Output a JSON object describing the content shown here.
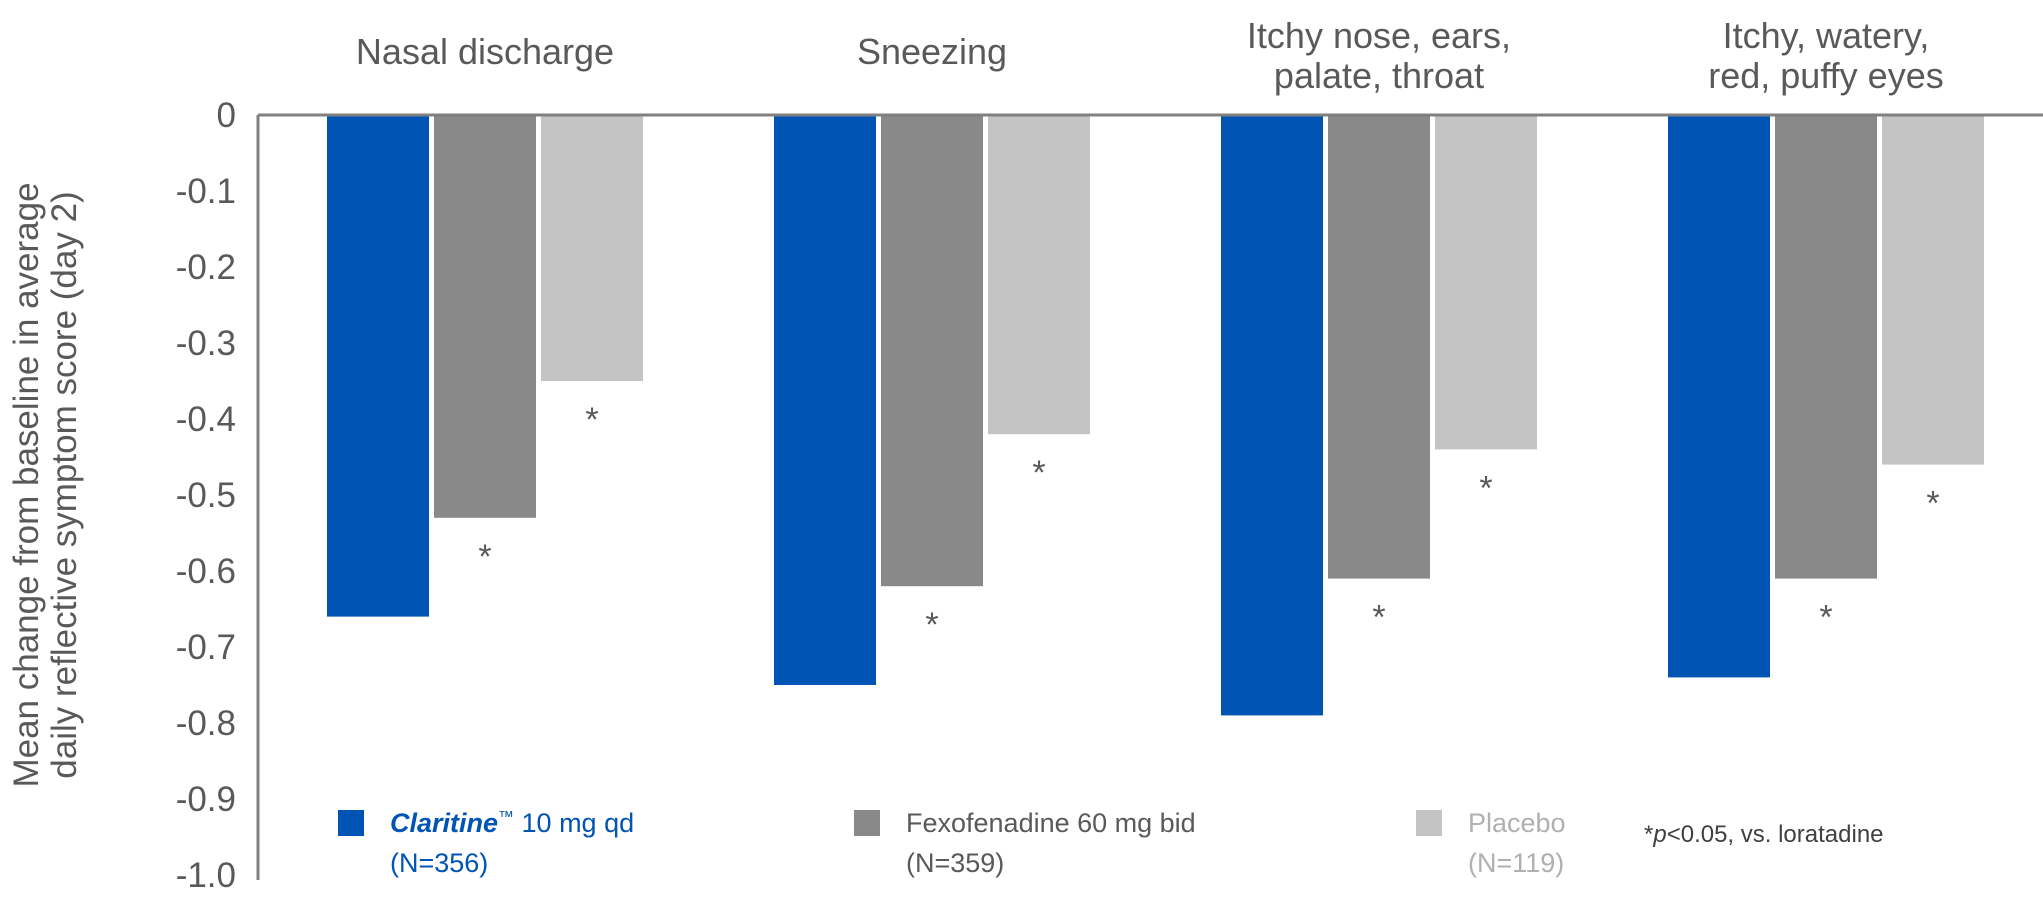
{
  "chart_data": {
    "type": "bar",
    "ylabel_lines": [
      "Mean change from baseline in average",
      "daily reflective symptom score (day 2)"
    ],
    "ylim": [
      -1.0,
      0
    ],
    "yticks": [
      "0",
      "-0.1",
      "-0.2",
      "-0.3",
      "-0.4",
      "-0.5",
      "-0.6",
      "-0.7",
      "-0.8",
      "-0.9",
      "-1.0"
    ],
    "grid": false,
    "categories": [
      {
        "lines": [
          "Nasal discharge"
        ]
      },
      {
        "lines": [
          "Sneezing"
        ]
      },
      {
        "lines": [
          "Itchy nose, ears,",
          "palate, throat"
        ]
      },
      {
        "lines": [
          "Itchy, watery,",
          "red, puffy eyes"
        ]
      }
    ],
    "series": [
      {
        "name": "Claritine",
        "tm": "™",
        "dose": " 10 mg qd",
        "n": "(N=356)",
        "color": "#0054B4",
        "text_color": "#0054B4",
        "values": [
          -0.66,
          -0.75,
          -0.79,
          -0.74
        ],
        "significant": [
          false,
          false,
          false,
          false
        ]
      },
      {
        "name": "Fexofenadine 60 mg bid",
        "n": "(N=359)",
        "color": "#898989",
        "text_color": "#595959",
        "values": [
          -0.53,
          -0.62,
          -0.61,
          -0.61
        ],
        "significant": [
          true,
          true,
          true,
          true
        ]
      },
      {
        "name": "Placebo",
        "n": "(N=119)",
        "color": "#C4C4C4",
        "text_color": "#B0B0B0",
        "values": [
          -0.35,
          -0.42,
          -0.44,
          -0.46
        ],
        "significant": [
          true,
          true,
          true,
          true
        ]
      }
    ],
    "significance_marker": "*",
    "footnote": {
      "star": "*",
      "p": "p",
      "rest": "<0.05, vs. loratadine"
    },
    "legend_position": "bottom"
  }
}
